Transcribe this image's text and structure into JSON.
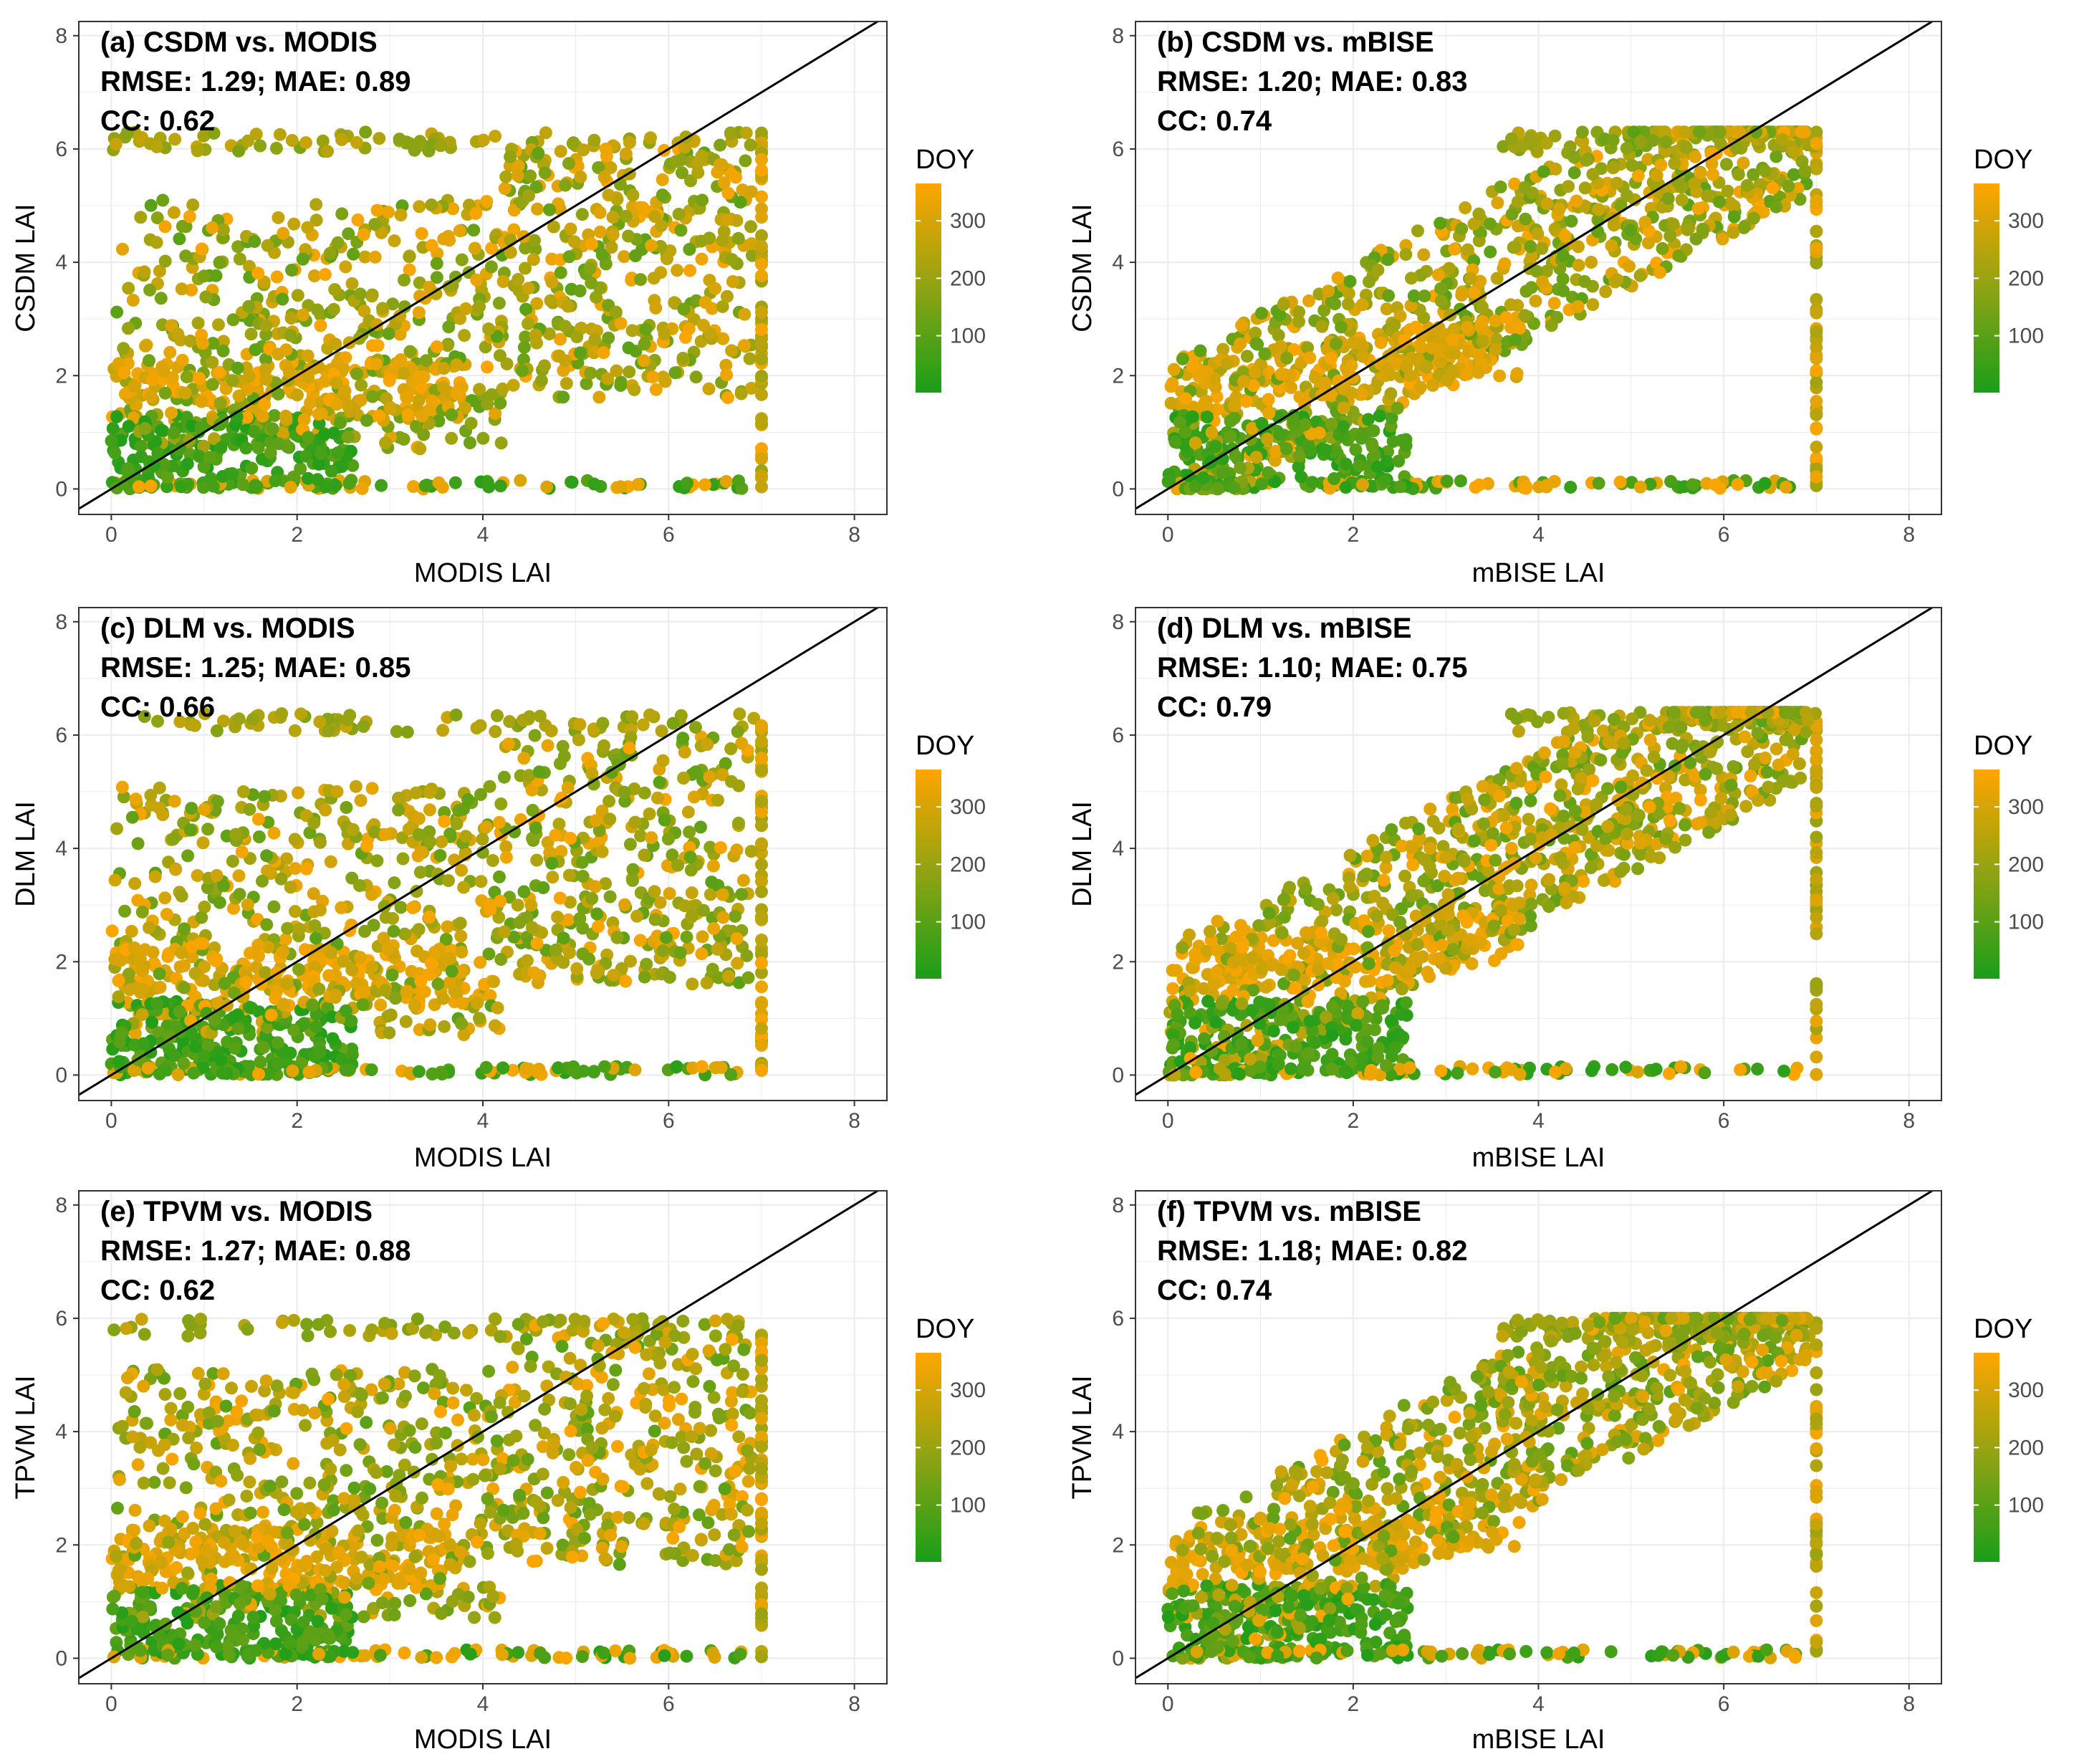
{
  "colorbar": {
    "title": "DOY",
    "ticks": [
      100,
      200,
      300
    ],
    "range": [
      1,
      365
    ],
    "low_color": "#1a9e1a",
    "mid_color": "#8ea313",
    "high_color": "#ffa500"
  },
  "chart_data": [
    {
      "type": "scatter",
      "panel": "a",
      "annotation": [
        "(a) CSDM vs. MODIS",
        "RMSE: 1.29; MAE: 0.89",
        "CC: 0.62"
      ],
      "xlabel": "MODIS LAI",
      "ylabel": "CSDM LAI",
      "xlim": [
        -0.35,
        8.35
      ],
      "ylim": [
        -0.45,
        8.25
      ],
      "xticks": [
        0,
        2,
        4,
        6,
        8
      ],
      "yticks": [
        0,
        2,
        4,
        6,
        8
      ],
      "reference_line": "1:1",
      "ymax_value": 6.3,
      "xmax_value": 7.0,
      "color_by": "DOY",
      "seed": 11
    },
    {
      "type": "scatter",
      "panel": "b",
      "annotation": [
        "(b) CSDM vs. mBISE",
        "RMSE: 1.20; MAE: 0.83",
        "CC: 0.74"
      ],
      "xlabel": "mBISE LAI",
      "ylabel": "CSDM LAI",
      "xlim": [
        -0.35,
        8.35
      ],
      "ylim": [
        -0.45,
        8.25
      ],
      "xticks": [
        0,
        2,
        4,
        6,
        8
      ],
      "yticks": [
        0,
        2,
        4,
        6,
        8
      ],
      "reference_line": "1:1",
      "ymax_value": 6.3,
      "xmax_value": 7.0,
      "color_by": "DOY",
      "seed": 23
    },
    {
      "type": "scatter",
      "panel": "c",
      "annotation": [
        "(c) DLM vs. MODIS",
        "RMSE: 1.25; MAE: 0.85",
        "CC: 0.66"
      ],
      "xlabel": "MODIS LAI",
      "ylabel": "DLM LAI",
      "xlim": [
        -0.35,
        8.35
      ],
      "ylim": [
        -0.45,
        8.25
      ],
      "xticks": [
        0,
        2,
        4,
        6,
        8
      ],
      "yticks": [
        0,
        2,
        4,
        6,
        8
      ],
      "reference_line": "1:1",
      "ymax_value": 6.4,
      "xmax_value": 7.0,
      "color_by": "DOY",
      "seed": 37
    },
    {
      "type": "scatter",
      "panel": "d",
      "annotation": [
        "(d) DLM vs. mBISE",
        "RMSE: 1.10; MAE: 0.75",
        "CC: 0.79"
      ],
      "xlabel": "mBISE LAI",
      "ylabel": "DLM LAI",
      "xlim": [
        -0.35,
        8.35
      ],
      "ylim": [
        -0.45,
        8.25
      ],
      "xticks": [
        0,
        2,
        4,
        6,
        8
      ],
      "yticks": [
        0,
        2,
        4,
        6,
        8
      ],
      "reference_line": "1:1",
      "ymax_value": 6.4,
      "xmax_value": 7.0,
      "color_by": "DOY",
      "seed": 41
    },
    {
      "type": "scatter",
      "panel": "e",
      "annotation": [
        "(e) TPVM vs. MODIS",
        "RMSE: 1.27; MAE: 0.88",
        "CC: 0.62"
      ],
      "xlabel": "MODIS LAI",
      "ylabel": "TPVM LAI",
      "xlim": [
        -0.35,
        8.35
      ],
      "ylim": [
        -0.45,
        8.25
      ],
      "xticks": [
        0,
        2,
        4,
        6,
        8
      ],
      "yticks": [
        0,
        2,
        4,
        6,
        8
      ],
      "reference_line": "1:1",
      "ymax_value": 6.0,
      "xmax_value": 7.0,
      "color_by": "DOY",
      "seed": 53
    },
    {
      "type": "scatter",
      "panel": "f",
      "annotation": [
        "(f) TPVM vs. mBISE",
        "RMSE: 1.18; MAE: 0.82",
        "CC: 0.74"
      ],
      "xlabel": "mBISE LAI",
      "ylabel": "TPVM LAI",
      "xlim": [
        -0.35,
        8.35
      ],
      "ylim": [
        -0.45,
        8.25
      ],
      "xticks": [
        0,
        2,
        4,
        6,
        8
      ],
      "yticks": [
        0,
        2,
        4,
        6,
        8
      ],
      "reference_line": "1:1",
      "ymax_value": 6.0,
      "xmax_value": 7.0,
      "color_by": "DOY",
      "seed": 67
    }
  ]
}
